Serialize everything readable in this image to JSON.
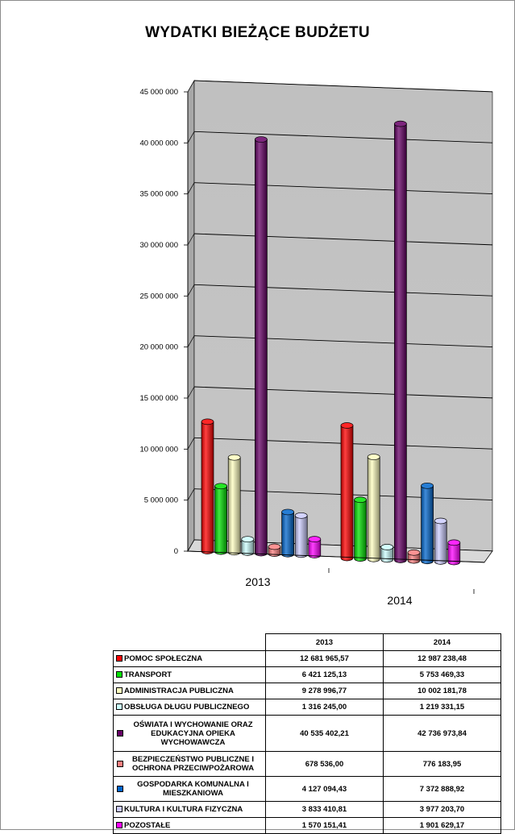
{
  "chart_data": {
    "type": "bar",
    "title": "WYDATKI BIEŻĄCE BUDŻETU",
    "categories": [
      "2013",
      "2014"
    ],
    "ylim": [
      0,
      45000000
    ],
    "yticks": [
      "0",
      "5 000 000",
      "10 000 000",
      "15 000 000",
      "20 000 000",
      "25 000 000",
      "30 000 000",
      "35 000 000",
      "40 000 000",
      "45 000 000"
    ],
    "ytick_values": [
      0,
      5000000,
      10000000,
      15000000,
      20000000,
      25000000,
      30000000,
      35000000,
      40000000,
      45000000
    ],
    "legend_position": "table-bottom",
    "series": [
      {
        "name": "POMOC SPOŁECZNA",
        "color": "#ff0000",
        "values": [
          12681965.57,
          12987238.48
        ],
        "labels": [
          "12 681 965,57",
          "12 987 238,48"
        ]
      },
      {
        "name": "TRANSPORT",
        "color": "#00e000",
        "values": [
          6421125.13,
          5753469.33
        ],
        "labels": [
          "6 421 125,13",
          "5 753 469,33"
        ]
      },
      {
        "name": "ADMINISTRACJA PUBLICZNA",
        "color": "#ffffc0",
        "values": [
          9278996.77,
          10002181.78
        ],
        "labels": [
          "9 278 996,77",
          "10 002 181,78"
        ]
      },
      {
        "name": "OBSŁUGA DŁUGU PUBLICZNEGO",
        "color": "#ccffff",
        "values": [
          1316245.0,
          1219331.15
        ],
        "labels": [
          "1 316 245,00",
          "1 219 331,15"
        ]
      },
      {
        "name": "OŚWIATA I WYCHOWANIE ORAZ EDUKACYJNA OPIEKA WYCHOWAWCZA",
        "color": "#660066",
        "values": [
          40535402.21,
          42736973.84
        ],
        "labels": [
          "40 535 402,21",
          "42 736 973,84"
        ]
      },
      {
        "name": "BEZPIECZEŃSTWO PUBLICZNE I OCHRONA PRZECIWPOŻAROWA",
        "color": "#ff8080",
        "values": [
          678536.0,
          776183.95
        ],
        "labels": [
          "678 536,00",
          "776 183,95"
        ]
      },
      {
        "name": "GOSPODARKA KOMUNALNA I MIESZKANIOWA",
        "color": "#0066cc",
        "values": [
          4127094.43,
          7372888.92
        ],
        "labels": [
          "4 127 094,43",
          "7 372 888,92"
        ]
      },
      {
        "name": "KULTURA I KULTURA FIZYCZNA",
        "color": "#ccccff",
        "values": [
          3833410.81,
          3977203.7
        ],
        "labels": [
          "3 833 410,81",
          "3 977 203,70"
        ]
      },
      {
        "name": "POZOSTAŁE",
        "color": "#ff00ff",
        "values": [
          1570151.41,
          1901629.17
        ],
        "labels": [
          "1 570 151,41",
          "1 901 629,17"
        ]
      }
    ]
  },
  "table": {
    "headers": [
      "2013",
      "2014"
    ],
    "rows": [
      {
        "label": "POMOC SPOŁECZNA",
        "color": "#ff0000"
      },
      {
        "label": "TRANSPORT",
        "color": "#00e000"
      },
      {
        "label": "ADMINISTRACJA PUBLICZNA",
        "color": "#ffffc0"
      },
      {
        "label": "OBSŁUGA DŁUGU PUBLICZNEGO",
        "color": "#ccffff"
      },
      {
        "label": "OŚWIATA I WYCHOWANIE ORAZ EDUKACYJNA OPIEKA WYCHOWAWCZA",
        "color": "#660066"
      },
      {
        "label": "BEZPIECZEŃSTWO PUBLICZNE I OCHRONA PRZECIWPOŻAROWA",
        "color": "#ff8080"
      },
      {
        "label": "GOSPODARKA KOMUNALNA I MIESZKANIOWA",
        "color": "#0066cc"
      },
      {
        "label": "KULTURA I KULTURA FIZYCZNA",
        "color": "#ccccff"
      },
      {
        "label": "POZOSTAŁE",
        "color": "#ff00ff"
      }
    ]
  }
}
